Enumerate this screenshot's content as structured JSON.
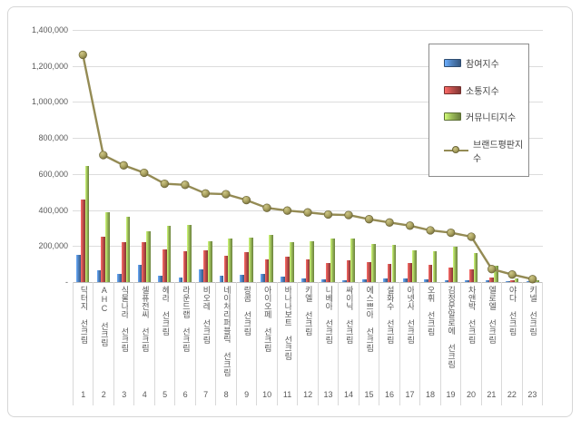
{
  "chart_data": {
    "type": "bar+line",
    "title": "",
    "unit_note": "Korean brand reputation index chart for sunscreen (선크림) brands, ranks 1-23",
    "categories": [
      "닥터지 선크림",
      "AHC 선크림",
      "식물나라 선크림",
      "셀퓨전씨 선크림",
      "헤라 선크림",
      "라운드랩 선크림",
      "비오레 선크림",
      "네이처리퍼블릭 선크림",
      "랑콤 선크림",
      "아이오페 선크림",
      "바나나보트 선크림",
      "키엘 선크림",
      "니베아 선크림",
      "싸이닉 선크림",
      "에스쁘아 선크림",
      "설화수 선크림",
      "아넷사 선크림",
      "오휘 선크림",
      "김정문알로에 선크림",
      "차앤박 선크림",
      "엘로엘 선크림",
      "야다 선크림",
      "키넬 선크림"
    ],
    "ranks": [
      1,
      2,
      3,
      4,
      5,
      6,
      7,
      8,
      9,
      10,
      11,
      12,
      13,
      14,
      15,
      16,
      17,
      18,
      19,
      20,
      21,
      22,
      23
    ],
    "series": [
      {
        "name": "참여지수",
        "type": "bar",
        "color": "#4F81BD",
        "values": [
          150000,
          67000,
          47000,
          95000,
          35000,
          25000,
          70000,
          35000,
          42000,
          47000,
          30000,
          19000,
          15000,
          10000,
          15000,
          20000,
          20000,
          15000,
          10000,
          12000,
          8000,
          6000,
          4000
        ]
      },
      {
        "name": "소통지수",
        "type": "bar",
        "color": "#C0504D",
        "values": [
          460000,
          250000,
          220000,
          222000,
          181000,
          173000,
          178000,
          148000,
          165000,
          128000,
          140000,
          126000,
          106000,
          119000,
          109000,
          101000,
          106000,
          96000,
          79000,
          69000,
          25000,
          10000,
          6000
        ]
      },
      {
        "name": "커뮤니티지수",
        "type": "bar",
        "color": "#9BBB59",
        "values": [
          645000,
          390000,
          365000,
          282000,
          311000,
          318000,
          225000,
          240000,
          245000,
          261000,
          220000,
          227000,
          240000,
          244000,
          210000,
          207000,
          178000,
          173000,
          195000,
          161000,
          92000,
          22000,
          10000
        ]
      },
      {
        "name": "브랜드평판지수",
        "type": "line",
        "color": "#948B54",
        "values": [
          1262000,
          705000,
          648000,
          607000,
          546000,
          540000,
          492000,
          488000,
          455000,
          412000,
          397000,
          387000,
          375000,
          372000,
          349000,
          331000,
          313000,
          287000,
          274000,
          252000,
          72000,
          42000,
          16000
        ]
      }
    ],
    "ylim": [
      0,
      1400000
    ],
    "yticks": [
      {
        "value": 0,
        "label": "-"
      },
      {
        "value": 200000,
        "label": "200,000"
      },
      {
        "value": 400000,
        "label": "400,000"
      },
      {
        "value": 600000,
        "label": "600,000"
      },
      {
        "value": 800000,
        "label": "800,000"
      },
      {
        "value": 1000000,
        "label": "1,000,000"
      },
      {
        "value": 1200000,
        "label": "1,200,000"
      },
      {
        "value": 1400000,
        "label": "1,400,000"
      }
    ],
    "grid": "horizontal",
    "legend_position": "upper-right",
    "axis_color": "#bfbfbf",
    "grid_color": "#dcdcdc",
    "text_color": "#595959"
  }
}
